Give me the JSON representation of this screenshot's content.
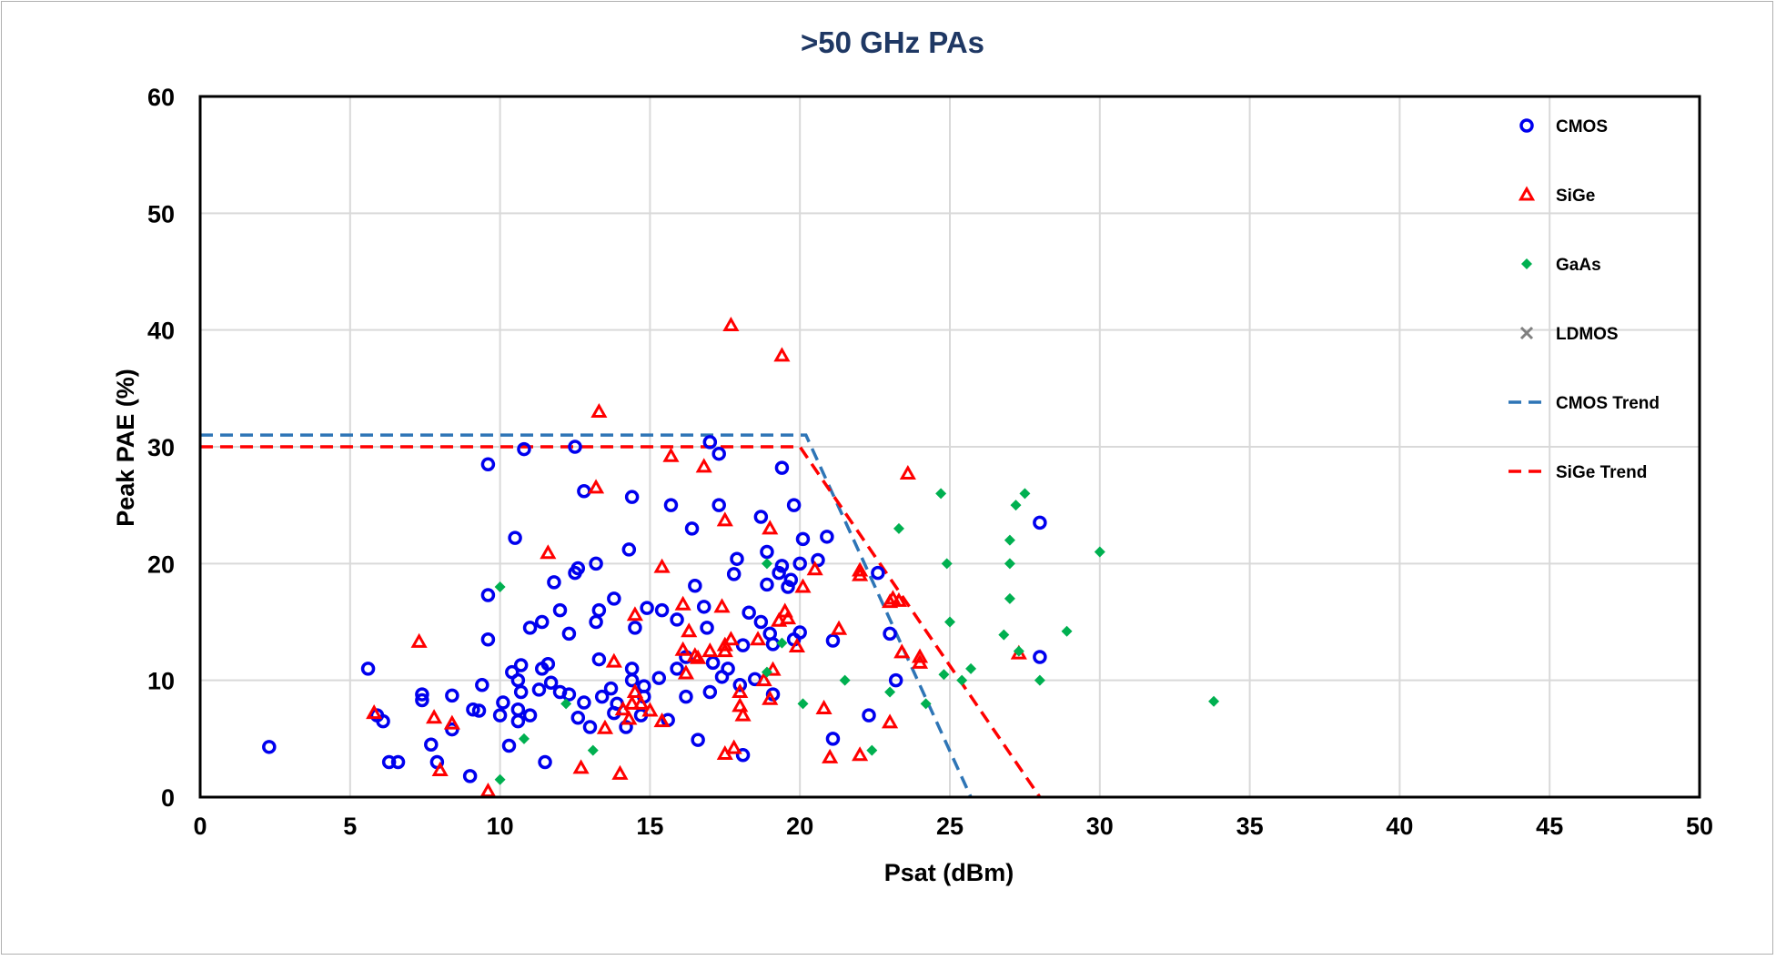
{
  "chart_data": {
    "type": "scatter",
    "title": ">50 GHz PAs",
    "xlabel": "Psat (dBm)",
    "ylabel": "Peak PAE (%)",
    "xlim": [
      0,
      50
    ],
    "ylim": [
      0,
      60
    ],
    "xticks": [
      0,
      5,
      10,
      15,
      20,
      25,
      30,
      35,
      40,
      45,
      50
    ],
    "yticks": [
      0,
      10,
      20,
      30,
      40,
      50,
      60
    ],
    "grid": true,
    "legend_position": "top-right inside plot",
    "colors": {
      "title": "#1f3864",
      "cmos": "#0000ee",
      "sige": "#ff0000",
      "gaas": "#00b050",
      "ldmos": "#808080",
      "cmos_trend": "#2e75b6",
      "sige_trend": "#ff0000",
      "grid": "#d9d9d9"
    },
    "series": [
      {
        "name": "CMOS",
        "marker": "circle",
        "points": [
          [
            2.3,
            4.3
          ],
          [
            5.6,
            11
          ],
          [
            5.9,
            7
          ],
          [
            6.1,
            6.5
          ],
          [
            6.3,
            3
          ],
          [
            6.6,
            3
          ],
          [
            7.4,
            8.8
          ],
          [
            7.4,
            8.3
          ],
          [
            7.7,
            4.5
          ],
          [
            7.9,
            3
          ],
          [
            8.4,
            8.7
          ],
          [
            8.4,
            5.8
          ],
          [
            9,
            1.8
          ],
          [
            9.1,
            7.5
          ],
          [
            9.3,
            7.4
          ],
          [
            9.4,
            9.6
          ],
          [
            9.6,
            28.5
          ],
          [
            9.6,
            17.3
          ],
          [
            9.6,
            13.5
          ],
          [
            10.1,
            8.1
          ],
          [
            10,
            7
          ],
          [
            10.3,
            4.4
          ],
          [
            10.4,
            10.7
          ],
          [
            10.5,
            22.2
          ],
          [
            10.6,
            10
          ],
          [
            10.6,
            7.5
          ],
          [
            10.6,
            6.5
          ],
          [
            10.7,
            11.3
          ],
          [
            10.7,
            9
          ],
          [
            10.8,
            29.8
          ],
          [
            11,
            14.5
          ],
          [
            11,
            7
          ],
          [
            11.3,
            9.2
          ],
          [
            11.4,
            15
          ],
          [
            11.4,
            11
          ],
          [
            11.5,
            3
          ],
          [
            11.6,
            11.4
          ],
          [
            11.7,
            9.8
          ],
          [
            11.8,
            18.4
          ],
          [
            12,
            16
          ],
          [
            12,
            9
          ],
          [
            12.3,
            14
          ],
          [
            12.3,
            8.8
          ],
          [
            12.5,
            30
          ],
          [
            12.5,
            19.2
          ],
          [
            12.6,
            19.6
          ],
          [
            12.6,
            6.8
          ],
          [
            12.8,
            26.2
          ],
          [
            12.8,
            8.1
          ],
          [
            13,
            6
          ],
          [
            13.2,
            20
          ],
          [
            13.2,
            15
          ],
          [
            13.3,
            16
          ],
          [
            13.3,
            11.8
          ],
          [
            13.4,
            8.6
          ],
          [
            13.7,
            9.3
          ],
          [
            13.8,
            17
          ],
          [
            13.8,
            7.2
          ],
          [
            13.9,
            8
          ],
          [
            14.2,
            6
          ],
          [
            14.3,
            21.2
          ],
          [
            14.4,
            11
          ],
          [
            14.4,
            10
          ],
          [
            14.4,
            25.7
          ],
          [
            14.5,
            14.5
          ],
          [
            14.7,
            7
          ],
          [
            14.8,
            9.5
          ],
          [
            14.8,
            8.6
          ],
          [
            14.9,
            16.2
          ],
          [
            15.3,
            10.2
          ],
          [
            15.4,
            16
          ],
          [
            15.6,
            6.6
          ],
          [
            15.7,
            25
          ],
          [
            15.9,
            15.2
          ],
          [
            15.9,
            11
          ],
          [
            16.2,
            12
          ],
          [
            16.2,
            8.6
          ],
          [
            16.4,
            23
          ],
          [
            16.5,
            18.1
          ],
          [
            16.6,
            4.9
          ],
          [
            16.8,
            16.3
          ],
          [
            16.9,
            14.5
          ],
          [
            17,
            30.4
          ],
          [
            17,
            9
          ],
          [
            17.1,
            11.5
          ],
          [
            17.3,
            25
          ],
          [
            17.3,
            29.4
          ],
          [
            17.4,
            10.3
          ],
          [
            17.6,
            11
          ],
          [
            17.8,
            19.1
          ],
          [
            17.9,
            20.4
          ],
          [
            18,
            9.6
          ],
          [
            18.1,
            3.6
          ],
          [
            18.1,
            13
          ],
          [
            18.3,
            15.8
          ],
          [
            18.5,
            10.1
          ],
          [
            18.7,
            24
          ],
          [
            18.7,
            15
          ],
          [
            18.9,
            18.2
          ],
          [
            18.9,
            21
          ],
          [
            19,
            14
          ],
          [
            19.1,
            8.8
          ],
          [
            19.1,
            13.1
          ],
          [
            19.3,
            19.2
          ],
          [
            19.4,
            19.8
          ],
          [
            19.4,
            28.2
          ],
          [
            19.6,
            18
          ],
          [
            19.7,
            18.6
          ],
          [
            19.8,
            25
          ],
          [
            19.8,
            13.5
          ],
          [
            20,
            20
          ],
          [
            20,
            14.1
          ],
          [
            20.1,
            22.1
          ],
          [
            20.6,
            20.3
          ],
          [
            20.9,
            22.3
          ],
          [
            21.1,
            13.4
          ],
          [
            21.1,
            5
          ],
          [
            22.3,
            7
          ],
          [
            22.6,
            19.2
          ],
          [
            23,
            14
          ],
          [
            23.2,
            10
          ],
          [
            28,
            23.5
          ],
          [
            28,
            12
          ]
        ]
      },
      {
        "name": "SiGe",
        "marker": "triangle",
        "points": [
          [
            5.8,
            7.2
          ],
          [
            7.3,
            13.3
          ],
          [
            7.8,
            6.8
          ],
          [
            8,
            2.3
          ],
          [
            8.4,
            6.3
          ],
          [
            9.6,
            0.5
          ],
          [
            11.6,
            20.9
          ],
          [
            12.7,
            2.5
          ],
          [
            13.2,
            26.5
          ],
          [
            13.3,
            33
          ],
          [
            13.5,
            5.9
          ],
          [
            13.8,
            11.6
          ],
          [
            14,
            2
          ],
          [
            14.1,
            7.5
          ],
          [
            14.3,
            6.7
          ],
          [
            14.4,
            8
          ],
          [
            14.5,
            15.6
          ],
          [
            14.5,
            9
          ],
          [
            14.7,
            8
          ],
          [
            15,
            7.4
          ],
          [
            15.4,
            19.7
          ],
          [
            15.4,
            6.5
          ],
          [
            15.7,
            29.2
          ],
          [
            16.1,
            12.6
          ],
          [
            16.1,
            16.5
          ],
          [
            16.2,
            10.6
          ],
          [
            16.3,
            14.2
          ],
          [
            16.5,
            12.1
          ],
          [
            16.6,
            11.9
          ],
          [
            16.8,
            28.3
          ],
          [
            17,
            12.5
          ],
          [
            17.4,
            16.3
          ],
          [
            17.5,
            23.7
          ],
          [
            17.5,
            13
          ],
          [
            17.5,
            12.5
          ],
          [
            17.5,
            3.7
          ],
          [
            17.7,
            13.5
          ],
          [
            17.7,
            40.4
          ],
          [
            17.8,
            4.2
          ],
          [
            18,
            9
          ],
          [
            18,
            7.8
          ],
          [
            18.1,
            7
          ],
          [
            18.6,
            13.5
          ],
          [
            18.8,
            10
          ],
          [
            19,
            23
          ],
          [
            19,
            8.4
          ],
          [
            19.1,
            10.9
          ],
          [
            19.3,
            15.1
          ],
          [
            19.4,
            37.8
          ],
          [
            19.5,
            15.9
          ],
          [
            19.6,
            15.3
          ],
          [
            19.9,
            12.9
          ],
          [
            20.1,
            18
          ],
          [
            20.5,
            19.5
          ],
          [
            20.8,
            7.6
          ],
          [
            21,
            3.4
          ],
          [
            21.3,
            14.4
          ],
          [
            22,
            19.4
          ],
          [
            22,
            19
          ],
          [
            22,
            3.6
          ],
          [
            23,
            16.7
          ],
          [
            23,
            6.4
          ],
          [
            23.1,
            17
          ],
          [
            23.3,
            16.8
          ],
          [
            23.4,
            12.4
          ],
          [
            23.6,
            27.7
          ],
          [
            24,
            12
          ],
          [
            24,
            11.5
          ],
          [
            27.3,
            12.3
          ]
        ]
      },
      {
        "name": "GaAs",
        "marker": "diamond",
        "points": [
          [
            10,
            18
          ],
          [
            10,
            1.5
          ],
          [
            10.8,
            5
          ],
          [
            12.2,
            8
          ],
          [
            13.1,
            4
          ],
          [
            18.9,
            20
          ],
          [
            18.9,
            10.7
          ],
          [
            19.4,
            13.2
          ],
          [
            20.1,
            8
          ],
          [
            21.5,
            10
          ],
          [
            22.4,
            4
          ],
          [
            23,
            9
          ],
          [
            23.3,
            23
          ],
          [
            24.2,
            8
          ],
          [
            24.7,
            26
          ],
          [
            24.8,
            10.5
          ],
          [
            24.9,
            20
          ],
          [
            25,
            15
          ],
          [
            25.4,
            10
          ],
          [
            25.7,
            11
          ],
          [
            26.8,
            13.9
          ],
          [
            27,
            22
          ],
          [
            27,
            20
          ],
          [
            27,
            17
          ],
          [
            27.2,
            25
          ],
          [
            27.3,
            12.5
          ],
          [
            27.5,
            26
          ],
          [
            28,
            10
          ],
          [
            28.9,
            14.2
          ],
          [
            30,
            21
          ],
          [
            33.8,
            8.2
          ]
        ]
      },
      {
        "name": "LDMOS",
        "marker": "x",
        "points": []
      },
      {
        "name": "CMOS Trend",
        "marker": "dashed-line",
        "points": [
          [
            0,
            31
          ],
          [
            20.2,
            31
          ],
          [
            25.7,
            0
          ]
        ]
      },
      {
        "name": "SiGe Trend",
        "marker": "dashed-line",
        "points": [
          [
            0,
            30
          ],
          [
            20,
            30
          ],
          [
            28,
            0
          ]
        ]
      }
    ]
  }
}
